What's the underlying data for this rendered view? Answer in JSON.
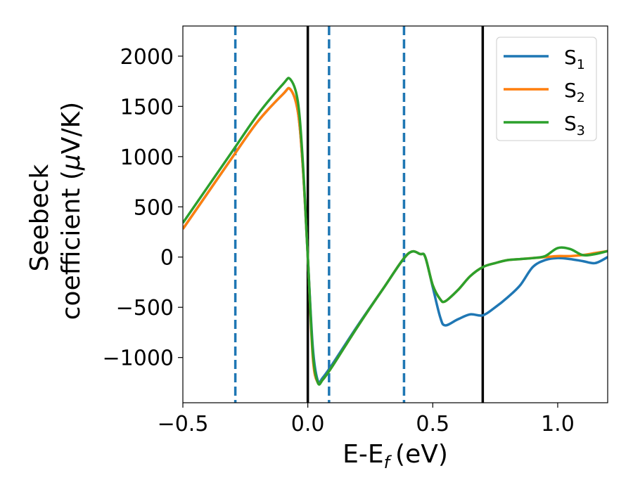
{
  "chart_data": {
    "type": "line",
    "title": "",
    "xlabel": "E-E",
    "xlabel_sub": "f",
    "xlabel_unit": "(eV)",
    "ylabel_line1": "Seebeck",
    "ylabel_line2_a": "coefficient  (",
    "ylabel_line2_mu": "μ",
    "ylabel_line2_b": "V/K)",
    "xlim": [
      -0.5,
      1.2
    ],
    "ylim": [
      -1450,
      2300
    ],
    "x_ticks": [
      -0.5,
      0.0,
      0.5,
      1.0
    ],
    "x_tick_labels": [
      "−0.5",
      "0.0",
      "0.5",
      "1.0"
    ],
    "y_ticks": [
      -1000,
      -500,
      0,
      500,
      1000,
      1500,
      2000
    ],
    "y_tick_labels": [
      "−1000",
      "−500",
      "0",
      "500",
      "1000",
      "1500",
      "2000"
    ],
    "grid": false,
    "legend_position": "top-right",
    "vlines_solid": [
      0.0,
      0.7
    ],
    "vlines_dashed": [
      -0.29,
      0.085,
      0.385
    ],
    "series": [
      {
        "name": "S",
        "name_sub": "1",
        "color": "#1f77b4",
        "x": [
          -0.5,
          -0.4,
          -0.3,
          -0.2,
          -0.1,
          -0.07,
          -0.04,
          -0.02,
          0.0,
          0.02,
          0.04,
          0.06,
          0.1,
          0.2,
          0.3,
          0.4,
          0.45,
          0.47,
          0.5,
          0.53,
          0.55,
          0.6,
          0.65,
          0.7,
          0.75,
          0.8,
          0.85,
          0.9,
          0.95,
          1.0,
          1.05,
          1.1,
          1.15,
          1.2
        ],
        "y": [
          280,
          640,
          1000,
          1350,
          1620,
          1670,
          1450,
          900,
          0,
          -900,
          -1230,
          -1200,
          -1060,
          -680,
          -320,
          30,
          30,
          0,
          -300,
          -600,
          -680,
          -620,
          -570,
          -580,
          -500,
          -400,
          -280,
          -100,
          -30,
          -10,
          -20,
          -40,
          -60,
          0
        ]
      },
      {
        "name": "S",
        "name_sub": "2",
        "color": "#ff7f0e",
        "x": [
          -0.5,
          -0.4,
          -0.3,
          -0.2,
          -0.1,
          -0.07,
          -0.04,
          -0.02,
          0.0,
          0.02,
          0.04,
          0.06,
          0.1,
          0.2,
          0.3,
          0.4,
          0.45,
          0.47,
          0.5,
          0.53,
          0.55,
          0.6,
          0.65,
          0.7,
          0.75,
          0.8,
          0.85,
          0.9,
          0.95,
          1.0,
          1.05,
          1.1,
          1.15,
          1.2
        ],
        "y": [
          280,
          640,
          1000,
          1350,
          1620,
          1670,
          1450,
          900,
          0,
          -1000,
          -1250,
          -1220,
          -1080,
          -690,
          -320,
          30,
          30,
          0,
          -280,
          -420,
          -440,
          -330,
          -190,
          -100,
          -60,
          -30,
          -20,
          -10,
          0,
          10,
          10,
          20,
          40,
          60
        ]
      },
      {
        "name": "S",
        "name_sub": "3",
        "color": "#2ca02c",
        "x": [
          -0.5,
          -0.4,
          -0.3,
          -0.2,
          -0.1,
          -0.07,
          -0.04,
          -0.02,
          0.0,
          0.02,
          0.04,
          0.06,
          0.1,
          0.2,
          0.3,
          0.4,
          0.45,
          0.47,
          0.5,
          0.53,
          0.55,
          0.6,
          0.65,
          0.7,
          0.75,
          0.8,
          0.85,
          0.9,
          0.95,
          1.0,
          1.05,
          1.1,
          1.15,
          1.2
        ],
        "y": [
          340,
          700,
          1060,
          1420,
          1720,
          1770,
          1550,
          950,
          0,
          -950,
          -1250,
          -1220,
          -1080,
          -690,
          -320,
          30,
          30,
          0,
          -280,
          -420,
          -440,
          -330,
          -190,
          -100,
          -60,
          -30,
          -20,
          -10,
          10,
          90,
          80,
          20,
          30,
          60
        ]
      }
    ]
  }
}
